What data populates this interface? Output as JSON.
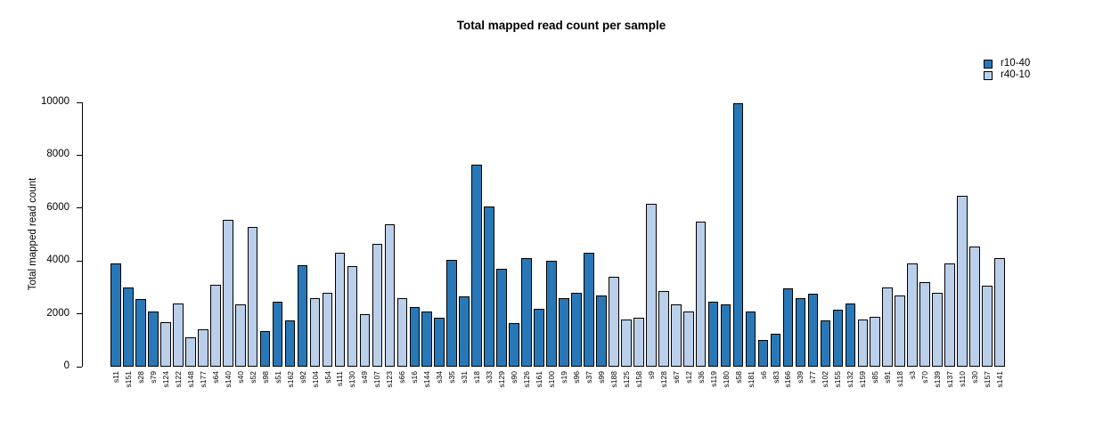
{
  "title": "Total mapped read count per sample",
  "legend": {
    "items": [
      {
        "label": "r10-40",
        "color": "#2878B8"
      },
      {
        "label": "r40-10",
        "color": "#BACFEA"
      }
    ]
  },
  "chart_data": {
    "type": "bar",
    "title": "Total mapped read count per sample",
    "xlabel": "",
    "ylabel": "Total mapped read count",
    "ylim": [
      0,
      10000
    ],
    "yticks": [
      0,
      2000,
      4000,
      6000,
      8000,
      10000
    ],
    "grid": false,
    "legend_position": "top-right",
    "bar_border_color": "#000000",
    "series_colors": {
      "r10-40": "#2878B8",
      "r40-10": "#BACFEA"
    },
    "samples": [
      {
        "name": "s11",
        "value": 3900,
        "group": "r10-40"
      },
      {
        "name": "s151",
        "value": 3000,
        "group": "r10-40"
      },
      {
        "name": "s28",
        "value": 2550,
        "group": "r10-40"
      },
      {
        "name": "s79",
        "value": 2100,
        "group": "r10-40"
      },
      {
        "name": "s124",
        "value": 1700,
        "group": "r40-10"
      },
      {
        "name": "s122",
        "value": 2400,
        "group": "r40-10"
      },
      {
        "name": "s148",
        "value": 1100,
        "group": "r40-10"
      },
      {
        "name": "s177",
        "value": 1400,
        "group": "r40-10"
      },
      {
        "name": "s64",
        "value": 3100,
        "group": "r40-10"
      },
      {
        "name": "s140",
        "value": 5550,
        "group": "r40-10"
      },
      {
        "name": "s40",
        "value": 2350,
        "group": "r40-10"
      },
      {
        "name": "s52",
        "value": 5300,
        "group": "r40-10"
      },
      {
        "name": "s98",
        "value": 1350,
        "group": "r10-40"
      },
      {
        "name": "s51",
        "value": 2450,
        "group": "r10-40"
      },
      {
        "name": "s162",
        "value": 1750,
        "group": "r10-40"
      },
      {
        "name": "s92",
        "value": 3850,
        "group": "r10-40"
      },
      {
        "name": "s104",
        "value": 2600,
        "group": "r40-10"
      },
      {
        "name": "s54",
        "value": 2800,
        "group": "r40-10"
      },
      {
        "name": "s111",
        "value": 4300,
        "group": "r40-10"
      },
      {
        "name": "s130",
        "value": 3800,
        "group": "r40-10"
      },
      {
        "name": "s49",
        "value": 2000,
        "group": "r40-10"
      },
      {
        "name": "s107",
        "value": 4650,
        "group": "r40-10"
      },
      {
        "name": "s123",
        "value": 5400,
        "group": "r40-10"
      },
      {
        "name": "s66",
        "value": 2600,
        "group": "r40-10"
      },
      {
        "name": "s16",
        "value": 2250,
        "group": "r10-40"
      },
      {
        "name": "s144",
        "value": 2100,
        "group": "r10-40"
      },
      {
        "name": "s34",
        "value": 1850,
        "group": "r10-40"
      },
      {
        "name": "s35",
        "value": 4050,
        "group": "r10-40"
      },
      {
        "name": "s31",
        "value": 2650,
        "group": "r10-40"
      },
      {
        "name": "s18",
        "value": 7650,
        "group": "r10-40"
      },
      {
        "name": "s33",
        "value": 6050,
        "group": "r10-40"
      },
      {
        "name": "s129",
        "value": 3700,
        "group": "r10-40"
      },
      {
        "name": "s90",
        "value": 1650,
        "group": "r10-40"
      },
      {
        "name": "s126",
        "value": 4100,
        "group": "r10-40"
      },
      {
        "name": "s161",
        "value": 2200,
        "group": "r10-40"
      },
      {
        "name": "s100",
        "value": 4000,
        "group": "r10-40"
      },
      {
        "name": "s19",
        "value": 2600,
        "group": "r10-40"
      },
      {
        "name": "s96",
        "value": 2800,
        "group": "r10-40"
      },
      {
        "name": "s37",
        "value": 4300,
        "group": "r10-40"
      },
      {
        "name": "s99",
        "value": 2700,
        "group": "r10-40"
      },
      {
        "name": "s188",
        "value": 3400,
        "group": "r40-10"
      },
      {
        "name": "s125",
        "value": 1800,
        "group": "r40-10"
      },
      {
        "name": "s158",
        "value": 1850,
        "group": "r40-10"
      },
      {
        "name": "s9",
        "value": 6150,
        "group": "r40-10"
      },
      {
        "name": "s128",
        "value": 2850,
        "group": "r40-10"
      },
      {
        "name": "s67",
        "value": 2350,
        "group": "r40-10"
      },
      {
        "name": "s12",
        "value": 2100,
        "group": "r40-10"
      },
      {
        "name": "s36",
        "value": 5500,
        "group": "r40-10"
      },
      {
        "name": "s119",
        "value": 2450,
        "group": "r10-40"
      },
      {
        "name": "s180",
        "value": 2350,
        "group": "r10-40"
      },
      {
        "name": "s58",
        "value": 9950,
        "group": "r10-40"
      },
      {
        "name": "s181",
        "value": 2100,
        "group": "r10-40"
      },
      {
        "name": "s6",
        "value": 1000,
        "group": "r10-40"
      },
      {
        "name": "s83",
        "value": 1250,
        "group": "r10-40"
      },
      {
        "name": "s166",
        "value": 2950,
        "group": "r10-40"
      },
      {
        "name": "s39",
        "value": 2600,
        "group": "r10-40"
      },
      {
        "name": "s77",
        "value": 2750,
        "group": "r10-40"
      },
      {
        "name": "s102",
        "value": 1750,
        "group": "r10-40"
      },
      {
        "name": "s155",
        "value": 2150,
        "group": "r10-40"
      },
      {
        "name": "s132",
        "value": 2400,
        "group": "r10-40"
      },
      {
        "name": "s159",
        "value": 1800,
        "group": "r40-10"
      },
      {
        "name": "s85",
        "value": 1900,
        "group": "r40-10"
      },
      {
        "name": "s91",
        "value": 3000,
        "group": "r40-10"
      },
      {
        "name": "s118",
        "value": 2700,
        "group": "r40-10"
      },
      {
        "name": "s3",
        "value": 3900,
        "group": "r40-10"
      },
      {
        "name": "s70",
        "value": 3200,
        "group": "r40-10"
      },
      {
        "name": "s139",
        "value": 2800,
        "group": "r40-10"
      },
      {
        "name": "s137",
        "value": 3900,
        "group": "r40-10"
      },
      {
        "name": "s110",
        "value": 6450,
        "group": "r40-10"
      },
      {
        "name": "s30",
        "value": 4550,
        "group": "r40-10"
      },
      {
        "name": "s157",
        "value": 3050,
        "group": "r40-10"
      },
      {
        "name": "s141",
        "value": 4100,
        "group": "r40-10"
      }
    ]
  }
}
